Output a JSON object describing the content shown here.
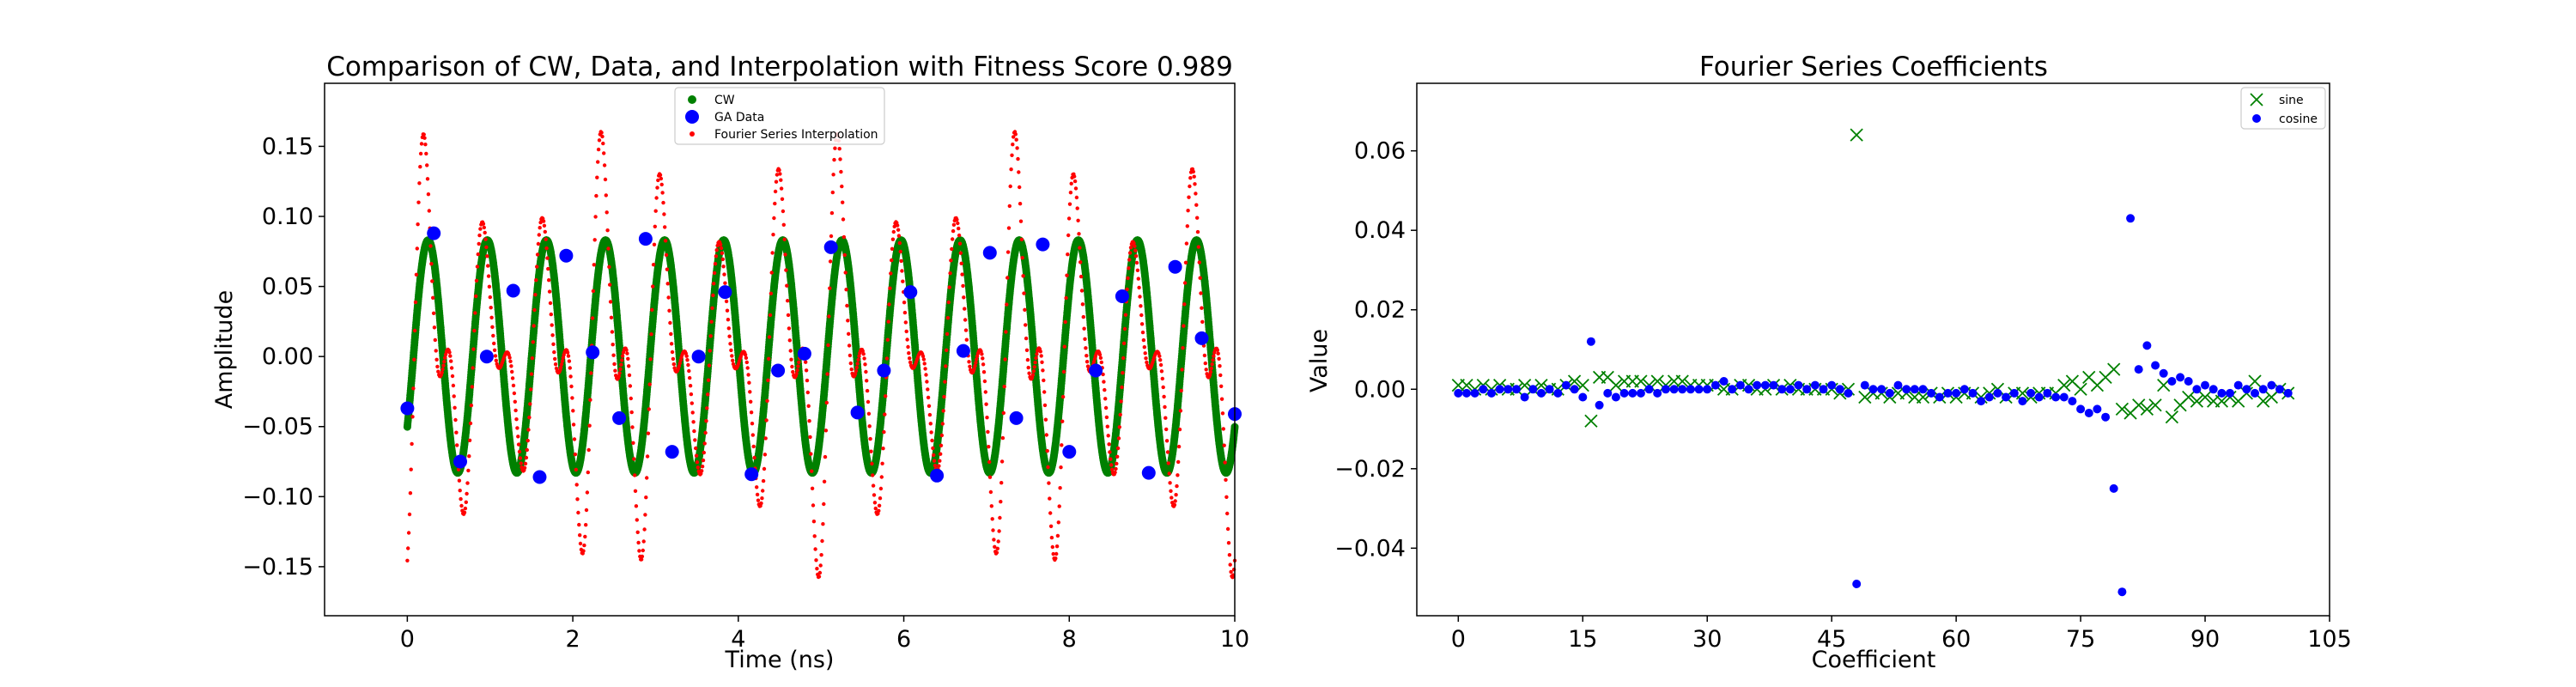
{
  "chart_data": [
    {
      "type": "scatter",
      "title": "Comparison of CW, Data, and Interpolation with Fitness Score 0.989",
      "xlabel": "Time (ns)",
      "ylabel": "Amplitude",
      "xlim": [
        -1,
        10
      ],
      "ylim": [
        -0.185,
        0.195
      ],
      "xticks": [
        0,
        2,
        4,
        6,
        8,
        10
      ],
      "yticks": [
        -0.15,
        -0.1,
        -0.05,
        0.0,
        0.05,
        0.1,
        0.15
      ],
      "xtick_labels": [
        "0",
        "2",
        "4",
        "6",
        "8",
        "10"
      ],
      "ytick_labels": [
        "−0.15",
        "−0.10",
        "−0.05",
        "0.00",
        "0.05",
        "0.10",
        "0.15"
      ],
      "grid": false,
      "legend_position": "top-center",
      "series": [
        {
          "name": "CW",
          "color": "#008000",
          "model": {
            "amplitude": 0.083,
            "frequency_ghz": 1.4,
            "phase": -0.65,
            "x_range": [
              0,
              10
            ],
            "samples": 4000
          }
        },
        {
          "name": "GA Data",
          "color": "#0000ff",
          "x": [
            0.0,
            0.32,
            0.64,
            0.96,
            1.28,
            1.6,
            1.92,
            2.24,
            2.56,
            2.88,
            3.2,
            3.52,
            3.84,
            4.16,
            4.48,
            4.8,
            5.12,
            5.44,
            5.76,
            6.08,
            6.4,
            6.72,
            7.04,
            7.36,
            7.68,
            8.0,
            8.32,
            8.64,
            8.96,
            9.28,
            9.6,
            10.0
          ],
          "y": [
            -0.037,
            0.088,
            -0.075,
            0.0,
            0.047,
            -0.086,
            0.072,
            0.003,
            -0.044,
            0.084,
            -0.068,
            0.0,
            0.046,
            -0.084,
            -0.01,
            0.002,
            0.078,
            -0.04,
            -0.01,
            0.046,
            -0.085,
            0.004,
            0.074,
            -0.044,
            0.08,
            -0.068,
            -0.01,
            0.043,
            -0.083,
            0.064,
            0.013,
            -0.041
          ]
        },
        {
          "name": "Fourier Series Interpolation",
          "color": "#ff0000",
          "model": {
            "x_range": [
              0,
              10
            ],
            "samples": 1100,
            "components": [
              {
                "amplitude": 0.11,
                "frequency_ghz": 1.4,
                "phase": -0.7
              },
              {
                "amplitude": 0.075,
                "frequency_ghz": 2.8,
                "phase": -1.5
              }
            ],
            "envelope_period_ns": 2.5
          }
        }
      ]
    },
    {
      "type": "scatter",
      "title": "Fourier Series Coefficients",
      "xlabel": "Coefficient",
      "ylabel": "Value",
      "xlim": [
        -5,
        105
      ],
      "ylim": [
        -0.057,
        0.077
      ],
      "xticks": [
        0,
        15,
        30,
        45,
        60,
        75,
        90,
        105
      ],
      "yticks": [
        -0.04,
        -0.02,
        0.0,
        0.02,
        0.04,
        0.06
      ],
      "xtick_labels": [
        "0",
        "15",
        "30",
        "45",
        "60",
        "75",
        "90",
        "105"
      ],
      "ytick_labels": [
        "−0.04",
        "−0.02",
        "0.00",
        "0.02",
        "0.04",
        "0.06"
      ],
      "grid": false,
      "legend_position": "top-right",
      "series": [
        {
          "name": "sine",
          "color": "#008000",
          "marker": "x",
          "x": [
            0,
            1,
            2,
            3,
            4,
            5,
            6,
            7,
            8,
            9,
            10,
            11,
            12,
            13,
            14,
            15,
            16,
            17,
            18,
            19,
            20,
            21,
            22,
            23,
            24,
            25,
            26,
            27,
            28,
            29,
            30,
            31,
            32,
            33,
            34,
            35,
            36,
            37,
            38,
            39,
            40,
            41,
            42,
            43,
            44,
            45,
            46,
            47,
            48,
            49,
            50,
            51,
            52,
            53,
            54,
            55,
            56,
            57,
            58,
            59,
            60,
            61,
            62,
            63,
            64,
            65,
            66,
            67,
            68,
            69,
            70,
            71,
            72,
            73,
            74,
            75,
            76,
            77,
            78,
            79,
            80,
            81,
            82,
            83,
            84,
            85,
            86,
            87,
            88,
            89,
            90,
            91,
            92,
            93,
            94,
            95,
            96,
            97,
            98,
            99,
            100
          ],
          "y": [
            0.001,
            0.001,
            0.0,
            0.001,
            0.0,
            0.001,
            0.0,
            0.0,
            0.001,
            0.0,
            0.001,
            0.0,
            0.0,
            0.001,
            0.002,
            0.001,
            -0.008,
            0.003,
            0.003,
            0.001,
            0.002,
            0.002,
            0.002,
            0.001,
            0.002,
            0.001,
            0.002,
            0.002,
            0.001,
            0.001,
            0.001,
            0.001,
            0.0,
            0.0,
            0.001,
            0.001,
            0.0,
            0.0,
            0.001,
            0.0,
            0.001,
            0.0,
            0.0,
            0.0,
            0.0,
            0.0,
            -0.001,
            0.0,
            0.064,
            -0.002,
            -0.001,
            -0.001,
            -0.002,
            -0.001,
            -0.001,
            -0.002,
            -0.002,
            -0.001,
            -0.002,
            -0.001,
            -0.002,
            -0.001,
            -0.001,
            -0.002,
            -0.001,
            0.0,
            -0.002,
            -0.001,
            -0.001,
            -0.002,
            -0.001,
            -0.001,
            -0.001,
            0.001,
            0.002,
            0.0,
            0.003,
            0.001,
            0.003,
            0.005,
            -0.005,
            -0.006,
            -0.004,
            -0.005,
            -0.004,
            0.001,
            -0.007,
            -0.004,
            -0.002,
            -0.003,
            -0.002,
            -0.003,
            -0.003,
            -0.002,
            -0.003,
            -0.001,
            0.002,
            -0.003,
            -0.002,
            0.0,
            -0.001
          ]
        },
        {
          "name": "cosine",
          "color": "#0000ff",
          "marker": "o",
          "x": [
            0,
            1,
            2,
            3,
            4,
            5,
            6,
            7,
            8,
            9,
            10,
            11,
            12,
            13,
            14,
            15,
            16,
            17,
            18,
            19,
            20,
            21,
            22,
            23,
            24,
            25,
            26,
            27,
            28,
            29,
            30,
            31,
            32,
            33,
            34,
            35,
            36,
            37,
            38,
            39,
            40,
            41,
            42,
            43,
            44,
            45,
            46,
            47,
            48,
            49,
            50,
            51,
            52,
            53,
            54,
            55,
            56,
            57,
            58,
            59,
            60,
            61,
            62,
            63,
            64,
            65,
            66,
            67,
            68,
            69,
            70,
            71,
            72,
            73,
            74,
            75,
            76,
            77,
            78,
            79,
            80,
            81,
            82,
            83,
            84,
            85,
            86,
            87,
            88,
            89,
            90,
            91,
            92,
            93,
            94,
            95,
            96,
            97,
            98,
            99,
            100
          ],
          "y": [
            -0.001,
            -0.001,
            -0.001,
            0.0,
            -0.001,
            0.0,
            0.0,
            0.0,
            -0.002,
            0.0,
            -0.001,
            0.0,
            -0.001,
            0.001,
            0.0,
            -0.002,
            0.012,
            -0.004,
            -0.001,
            -0.002,
            -0.001,
            -0.001,
            -0.001,
            0.0,
            -0.001,
            0.0,
            0.0,
            0.0,
            0.0,
            0.0,
            0.0,
            0.001,
            0.002,
            0.0,
            0.001,
            0.0,
            0.001,
            0.001,
            0.001,
            0.0,
            0.0,
            0.001,
            0.0,
            0.001,
            0.0,
            0.001,
            0.0,
            -0.001,
            -0.049,
            0.001,
            0.0,
            0.0,
            -0.001,
            0.001,
            0.0,
            0.0,
            0.0,
            -0.001,
            -0.002,
            -0.001,
            -0.001,
            0.0,
            -0.001,
            -0.003,
            -0.002,
            -0.001,
            -0.002,
            -0.001,
            -0.003,
            -0.001,
            -0.002,
            -0.001,
            -0.002,
            -0.002,
            -0.003,
            -0.005,
            -0.006,
            -0.005,
            -0.007,
            -0.025,
            -0.051,
            0.043,
            0.005,
            0.011,
            0.006,
            0.004,
            0.002,
            0.003,
            0.002,
            0.0,
            0.001,
            0.0,
            -0.001,
            -0.001,
            0.001,
            0.0,
            -0.001,
            0.0,
            0.001,
            0.0,
            -0.001
          ]
        }
      ]
    }
  ]
}
